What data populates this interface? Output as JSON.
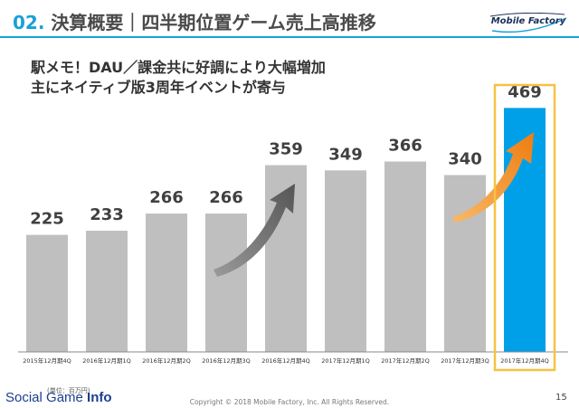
{
  "header": {
    "number": "02.",
    "title": "決算概要｜四半期位置ゲーム売上高推移",
    "logo": "Mobile Factory",
    "accent_color": "#1aa0d8"
  },
  "subtitle": {
    "line1": "駅メモ！DAU／課金共に好調により大幅増加",
    "line2": "主にネイティブ版3周年イベントが寄与"
  },
  "chart_data": {
    "type": "bar",
    "categories": [
      "2015年12月期4Q",
      "2016年12月期1Q",
      "2016年12月期2Q",
      "2016年12月期3Q",
      "2016年12月期4Q",
      "2017年12月期1Q",
      "2017年12月期2Q",
      "2017年12月期3Q",
      "2017年12月期4Q"
    ],
    "values": [
      225,
      233,
      266,
      266,
      359,
      349,
      366,
      340,
      469
    ],
    "ylim": [
      0,
      520
    ],
    "bar_color": "#bfbfbf",
    "highlight_color": "#00a0e9",
    "highlight_index": 8,
    "highlight_border_color": "#f5c342"
  },
  "footer": {
    "unit": "(単位：百万円)",
    "brand_regular": "Social Game ",
    "brand_bold": "Info",
    "copyright": "Copyright © 2018 Mobile Factory, Inc. All Rights Reserved.",
    "page": "15"
  }
}
